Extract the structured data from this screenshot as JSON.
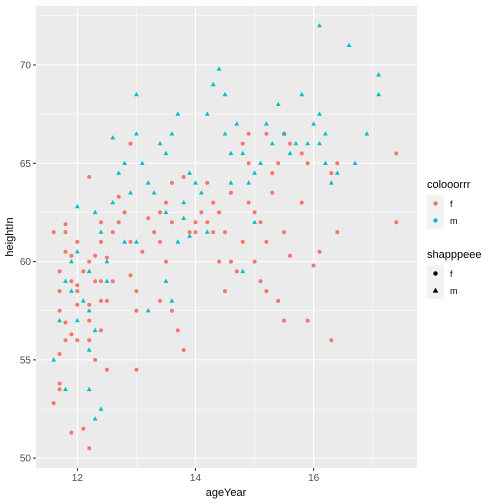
{
  "chart_data": {
    "type": "scatter",
    "title": "",
    "xlabel": "ageYear",
    "ylabel": "heightIn",
    "xlim": [
      11.3,
      17.75
    ],
    "ylim": [
      49.5,
      73
    ],
    "xticks": [
      12,
      14,
      16
    ],
    "yticks": [
      50,
      55,
      60,
      65,
      70
    ],
    "grid": true,
    "background": "#ebebeb",
    "legend_color": {
      "title": "colooorrr",
      "entries": [
        {
          "label": "f",
          "color": "#f8766d"
        },
        {
          "label": "m",
          "color": "#00bfc4"
        }
      ]
    },
    "legend_shape": {
      "title": "shapppeee",
      "entries": [
        {
          "label": "f",
          "shape": "circle"
        },
        {
          "label": "m",
          "shape": "triangle"
        }
      ]
    },
    "series": [
      {
        "group": "f",
        "color": "#f8766d",
        "shape": "circle",
        "points": [
          [
            11.6,
            52.8
          ],
          [
            11.7,
            53.5
          ],
          [
            11.7,
            53.8
          ],
          [
            11.7,
            55.3
          ],
          [
            11.8,
            56.0
          ],
          [
            11.7,
            57.5
          ],
          [
            11.9,
            56.3
          ],
          [
            11.8,
            56.9
          ],
          [
            11.7,
            58.5
          ],
          [
            11.7,
            59.5
          ],
          [
            11.8,
            60.5
          ],
          [
            11.6,
            61.5
          ],
          [
            11.8,
            61.5
          ],
          [
            11.8,
            61.9
          ],
          [
            11.9,
            60.3
          ],
          [
            11.9,
            59.0
          ],
          [
            12.0,
            57.8
          ],
          [
            12.0,
            58.5
          ],
          [
            12.0,
            56.0
          ],
          [
            11.9,
            51.3
          ],
          [
            12.1,
            51.5
          ],
          [
            12.2,
            50.5
          ],
          [
            12.0,
            61.0
          ],
          [
            12.2,
            60.0
          ],
          [
            12.1,
            59.5
          ],
          [
            12.0,
            58.8
          ],
          [
            12.2,
            57.8
          ],
          [
            12.2,
            56.0
          ],
          [
            12.3,
            55.0
          ],
          [
            12.3,
            59.0
          ],
          [
            12.4,
            58.0
          ],
          [
            12.3,
            60.3
          ],
          [
            12.4,
            61.0
          ],
          [
            12.5,
            60.2
          ],
          [
            12.4,
            62.0
          ],
          [
            12.2,
            57.0
          ],
          [
            12.4,
            56.5
          ],
          [
            12.5,
            54.5
          ],
          [
            12.4,
            59.0
          ],
          [
            12.5,
            58.0
          ],
          [
            12.6,
            59.0
          ],
          [
            12.6,
            61.5
          ],
          [
            12.7,
            62.0
          ],
          [
            12.7,
            63.3
          ],
          [
            12.8,
            62.5
          ],
          [
            12.9,
            61.0
          ],
          [
            12.9,
            59.3
          ],
          [
            13.0,
            58.5
          ],
          [
            13.0,
            57.5
          ],
          [
            12.9,
            66.0
          ],
          [
            13.0,
            54.5
          ],
          [
            13.1,
            60.5
          ],
          [
            13.2,
            62.2
          ],
          [
            13.3,
            61.5
          ],
          [
            13.4,
            62.5
          ],
          [
            13.4,
            61.0
          ],
          [
            13.5,
            60.0
          ],
          [
            13.4,
            58.0
          ],
          [
            13.6,
            57.5
          ],
          [
            13.7,
            56.5
          ],
          [
            13.8,
            55.5
          ],
          [
            13.6,
            64.0
          ],
          [
            13.8,
            64.3
          ],
          [
            13.9,
            61.5
          ],
          [
            14.0,
            62.0
          ],
          [
            14.0,
            61.5
          ],
          [
            14.1,
            62.5
          ],
          [
            14.2,
            62.0
          ],
          [
            14.3,
            61.5
          ],
          [
            14.4,
            60.0
          ],
          [
            14.5,
            61.5
          ],
          [
            14.6,
            60.0
          ],
          [
            14.5,
            58.5
          ],
          [
            14.7,
            59.5
          ],
          [
            14.8,
            61.0
          ],
          [
            14.2,
            64.0
          ],
          [
            14.3,
            63.0
          ],
          [
            14.4,
            62.5
          ],
          [
            14.6,
            63.5
          ],
          [
            14.8,
            66.0
          ],
          [
            14.9,
            65.0
          ],
          [
            14.9,
            63.0
          ],
          [
            15.0,
            62.5
          ],
          [
            15.1,
            62.0
          ],
          [
            15.2,
            61.0
          ],
          [
            15.0,
            60.0
          ],
          [
            15.1,
            59.0
          ],
          [
            15.2,
            58.5
          ],
          [
            15.4,
            58.0
          ],
          [
            15.3,
            63.5
          ],
          [
            15.3,
            64.5
          ],
          [
            15.4,
            65.0
          ],
          [
            15.5,
            66.5
          ],
          [
            15.6,
            66.0
          ],
          [
            15.5,
            61.5
          ],
          [
            15.6,
            60.3
          ],
          [
            15.5,
            57.0
          ],
          [
            15.8,
            63.0
          ],
          [
            15.8,
            65.5
          ],
          [
            15.9,
            65.0
          ],
          [
            15.9,
            57.0
          ],
          [
            16.0,
            59.8
          ],
          [
            16.1,
            60.5
          ],
          [
            16.3,
            64.5
          ],
          [
            16.4,
            65.0
          ],
          [
            16.4,
            61.5
          ],
          [
            17.4,
            65.5
          ],
          [
            17.4,
            62.0
          ],
          [
            13.5,
            63.0
          ],
          [
            13.6,
            62.0
          ],
          [
            12.2,
            64.3
          ],
          [
            14.9,
            66.5
          ],
          [
            15.2,
            66.5
          ],
          [
            16.3,
            56.0
          ]
        ]
      },
      {
        "group": "m",
        "color": "#00bfc4",
        "shape": "triangle",
        "points": [
          [
            11.6,
            55.0
          ],
          [
            11.7,
            57.0
          ],
          [
            11.8,
            59.0
          ],
          [
            11.8,
            53.5
          ],
          [
            12.0,
            57.0
          ],
          [
            12.0,
            62.8
          ],
          [
            11.9,
            60.0
          ],
          [
            12.1,
            58.0
          ],
          [
            12.2,
            57.5
          ],
          [
            12.2,
            55.5
          ],
          [
            12.3,
            56.5
          ],
          [
            12.2,
            53.5
          ],
          [
            12.3,
            52.0
          ],
          [
            12.4,
            52.5
          ],
          [
            12.3,
            62.5
          ],
          [
            12.4,
            61.5
          ],
          [
            12.5,
            60.0
          ],
          [
            12.6,
            63.0
          ],
          [
            12.7,
            64.5
          ],
          [
            12.6,
            66.3
          ],
          [
            12.8,
            65.0
          ],
          [
            12.9,
            63.5
          ],
          [
            12.8,
            61.0
          ],
          [
            13.0,
            61.0
          ],
          [
            13.0,
            68.5
          ],
          [
            13.1,
            65.0
          ],
          [
            13.0,
            66.5
          ],
          [
            13.2,
            64.0
          ],
          [
            13.3,
            63.5
          ],
          [
            13.4,
            66.0
          ],
          [
            13.5,
            65.5
          ],
          [
            13.6,
            66.5
          ],
          [
            13.7,
            67.5
          ],
          [
            13.5,
            59.0
          ],
          [
            13.6,
            58.0
          ],
          [
            13.2,
            57.5
          ],
          [
            13.7,
            61.0
          ],
          [
            13.8,
            63.0
          ],
          [
            13.9,
            64.5
          ],
          [
            14.0,
            64.0
          ],
          [
            14.1,
            63.5
          ],
          [
            14.2,
            67.5
          ],
          [
            14.3,
            69.0
          ],
          [
            14.4,
            69.8
          ],
          [
            14.5,
            68.5
          ],
          [
            14.5,
            66.5
          ],
          [
            14.7,
            67.0
          ],
          [
            14.6,
            64.0
          ],
          [
            14.6,
            65.5
          ],
          [
            14.8,
            65.5
          ],
          [
            14.9,
            64.0
          ],
          [
            15.0,
            64.5
          ],
          [
            15.1,
            65.0
          ],
          [
            15.2,
            67.0
          ],
          [
            15.3,
            66.0
          ],
          [
            15.4,
            68.0
          ],
          [
            15.5,
            66.5
          ],
          [
            15.6,
            65.5
          ],
          [
            15.7,
            66.0
          ],
          [
            15.8,
            68.5
          ],
          [
            15.9,
            66.0
          ],
          [
            16.0,
            67.0
          ],
          [
            16.1,
            67.5
          ],
          [
            16.1,
            72.0
          ],
          [
            16.1,
            66.0
          ],
          [
            16.2,
            66.5
          ],
          [
            16.2,
            65.0
          ],
          [
            16.3,
            64.0
          ],
          [
            16.4,
            64.5
          ],
          [
            16.6,
            71.0
          ],
          [
            16.7,
            65.0
          ],
          [
            16.9,
            66.5
          ],
          [
            17.1,
            69.5
          ],
          [
            17.1,
            68.5
          ],
          [
            14.8,
            59.5
          ],
          [
            15.0,
            62.0
          ],
          [
            13.5,
            62.5
          ],
          [
            13.8,
            62.2
          ],
          [
            13.9,
            61.3
          ],
          [
            14.2,
            61.5
          ],
          [
            12.5,
            59.0
          ],
          [
            12.2,
            59.5
          ],
          [
            11.9,
            58.5
          ],
          [
            12.0,
            60.5
          ]
        ]
      }
    ]
  }
}
